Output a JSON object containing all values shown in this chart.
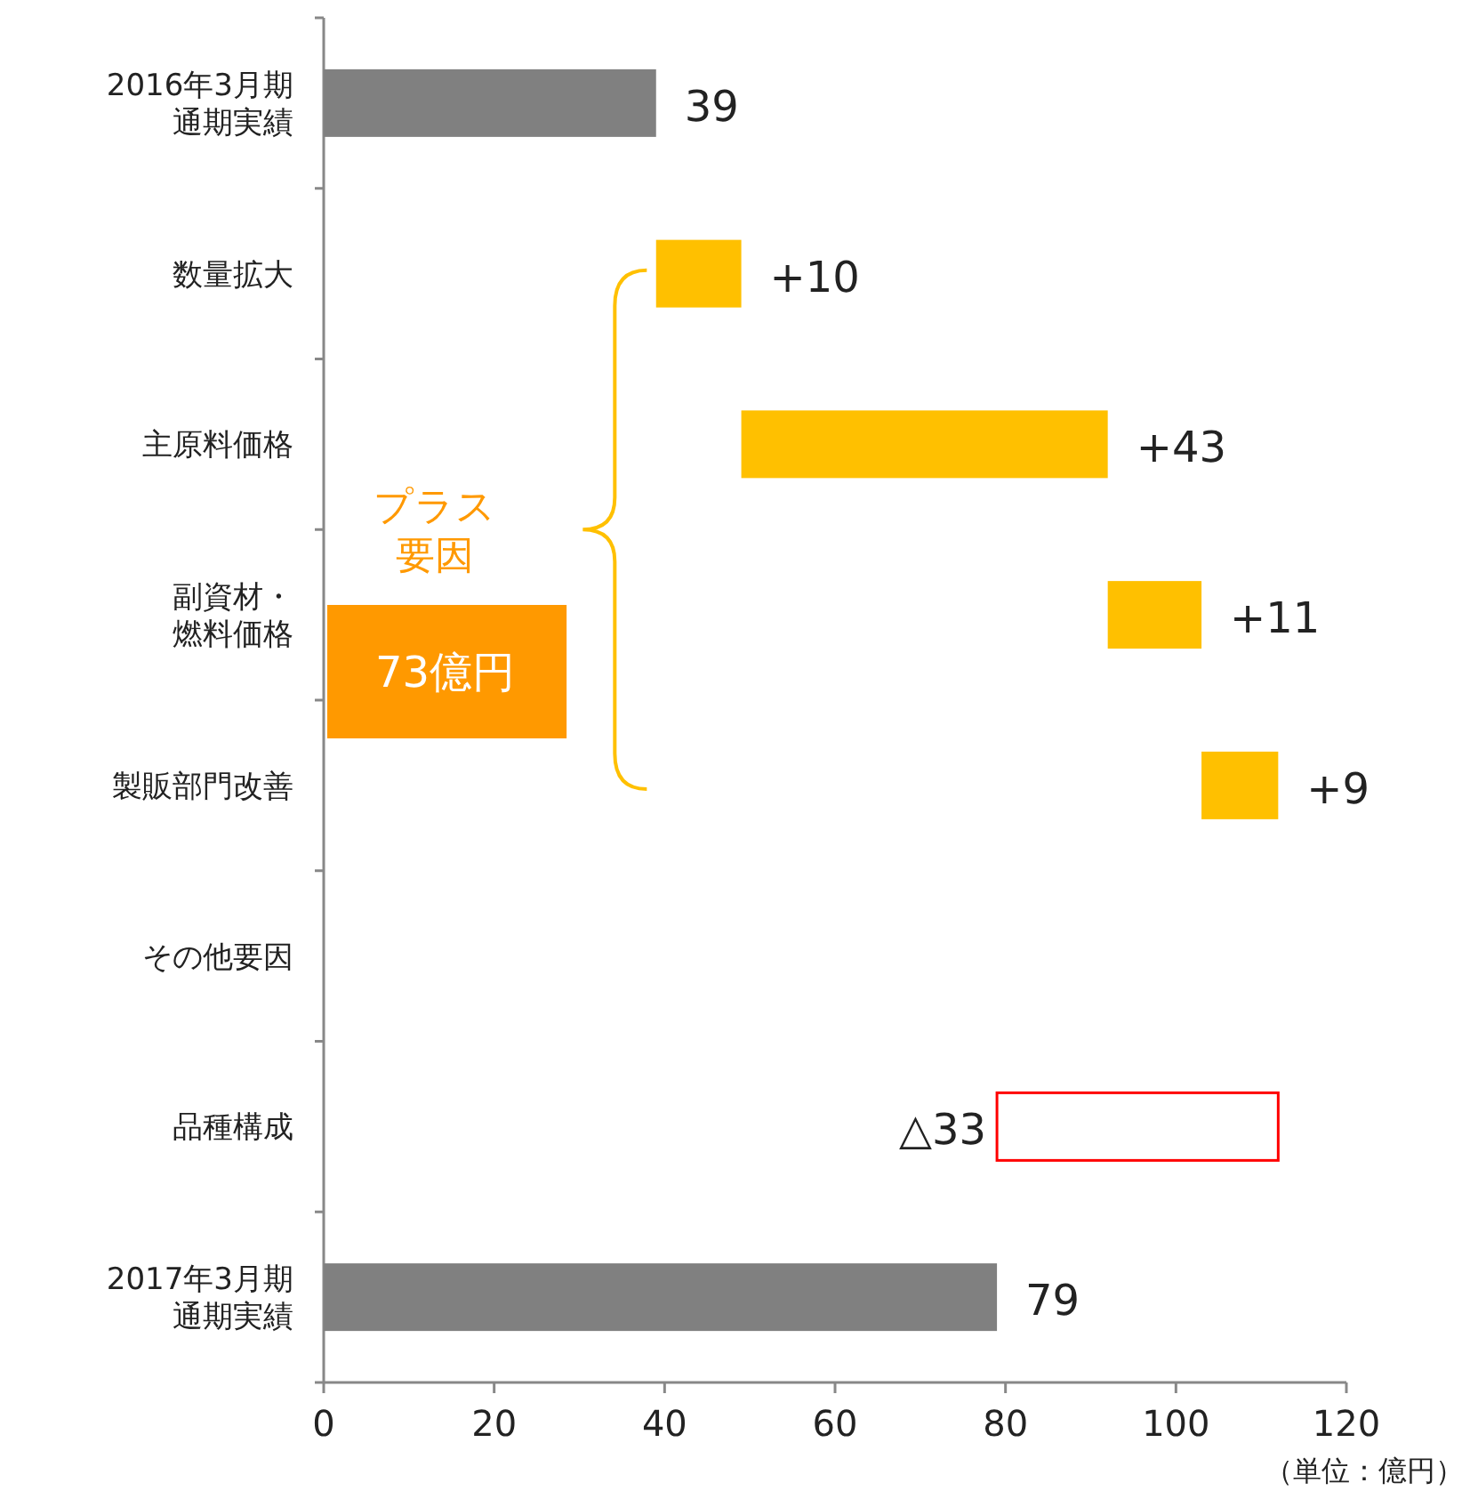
{
  "chart_data": {
    "type": "bar",
    "orientation": "horizontal",
    "categories": [
      "2016年3月期通期実績",
      "数量拡大",
      "主原料価格",
      "副資材・燃料価格",
      "製販部門改善",
      "その他要因",
      "品種構成",
      "2017年3月期通期実績"
    ],
    "values": [
      39,
      10,
      43,
      11,
      9,
      null,
      -33,
      79
    ],
    "base": [
      0,
      39,
      49,
      92,
      103,
      null,
      112,
      0
    ],
    "colors": [
      "#808080",
      "#ffc000",
      "#ffc000",
      "#ffc000",
      "#ffc000",
      null,
      "#ff0000",
      "#808080"
    ],
    "value_labels": [
      "39",
      "+10",
      "+43",
      "+11",
      "+9",
      null,
      "△33",
      "79"
    ],
    "xlim": [
      0,
      120
    ],
    "xticks": [
      0,
      20,
      40,
      60,
      80,
      100,
      120
    ],
    "grid": false,
    "annotations": [
      "プラス要因",
      "73億円",
      "（単位：億円）"
    ]
  }
}
